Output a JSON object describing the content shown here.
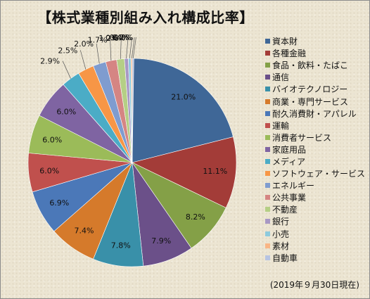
{
  "chart_data": {
    "type": "pie",
    "title": "【株式業種別組み入れ構成比率】",
    "note": "(2019年９月30日現在)",
    "legend_position": "right",
    "slices": [
      {
        "label": "資本財",
        "value": 21.0,
        "value_label": "21.0%",
        "color": "#3f6797"
      },
      {
        "label": "各種金融",
        "value": 11.1,
        "value_label": "11.1%",
        "color": "#a33c38"
      },
      {
        "label": "食品・飲料・たばこ",
        "value": 8.2,
        "value_label": "8.2%",
        "color": "#84a047"
      },
      {
        "label": "通信",
        "value": 7.9,
        "value_label": "7.9%",
        "color": "#6b5089"
      },
      {
        "label": "バイオテクノロジー",
        "value": 7.8,
        "value_label": "7.8%",
        "color": "#3990a9"
      },
      {
        "label": "商業・専門サービス",
        "value": 7.4,
        "value_label": "7.4%",
        "color": "#d57a2b"
      },
      {
        "label": "耐久消費財・アパレル",
        "value": 6.9,
        "value_label": "6.9%",
        "color": "#4b78b8"
      },
      {
        "label": "運輸",
        "value": 6.0,
        "value_label": "6.0%",
        "color": "#c0504d"
      },
      {
        "label": "消費者サービス",
        "value": 6.0,
        "value_label": "6.0%",
        "color": "#9bbb59"
      },
      {
        "label": "家庭用品",
        "value": 6.0,
        "value_label": "6.0%",
        "color": "#7f64a2"
      },
      {
        "label": "メディア",
        "value": 2.9,
        "value_label": "2.9%",
        "color": "#4bacc6"
      },
      {
        "label": "ソフトウェア・サービス",
        "value": 2.5,
        "value_label": "2.5%",
        "color": "#f79646"
      },
      {
        "label": "エネルギー",
        "value": 2.0,
        "value_label": "2.0%",
        "color": "#7f9ccf"
      },
      {
        "label": "公共事業",
        "value": 1.7,
        "value_label": "1.7%",
        "color": "#d58583"
      },
      {
        "label": "不動産",
        "value": 1.2,
        "value_label": "1.2%",
        "color": "#b5cf85"
      },
      {
        "label": "銀行",
        "value": 0.6,
        "value_label": "0.6%",
        "color": "#a898c4"
      },
      {
        "label": "小売",
        "value": 0.4,
        "value_label": "0.4%",
        "color": "#8dcadd"
      },
      {
        "label": "素材",
        "value": 0.2,
        "value_label": "0.2%",
        "color": "#f9b585"
      },
      {
        "label": "自動車",
        "value": 0.0,
        "value_label": "0.0%",
        "color": "#b7c4e2"
      }
    ]
  }
}
